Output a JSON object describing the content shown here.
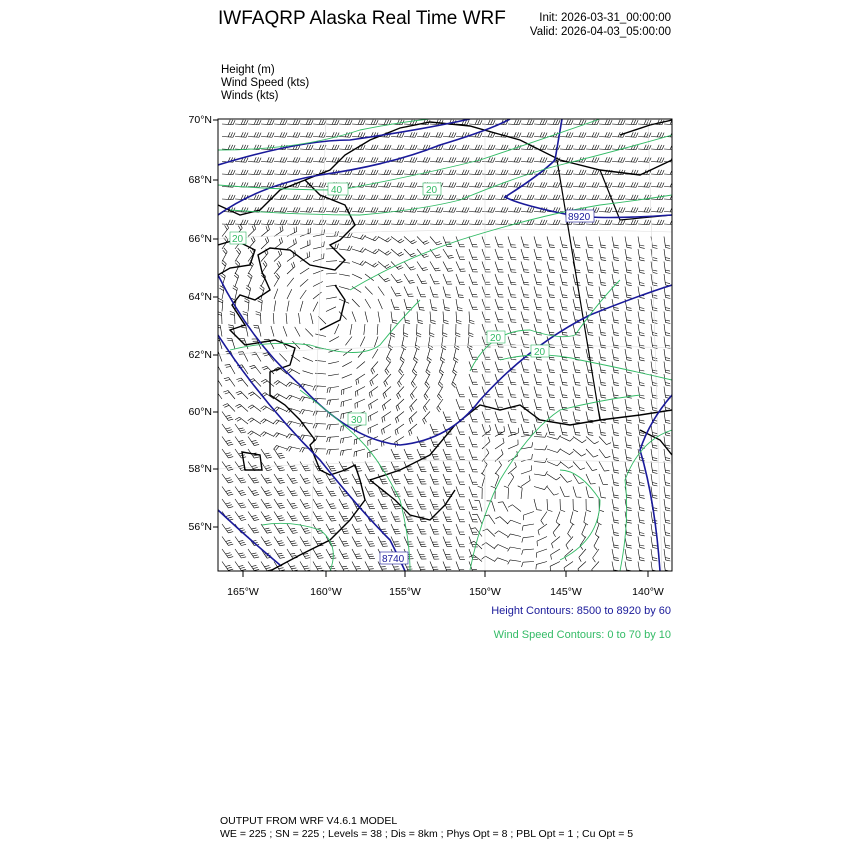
{
  "header": {
    "title": "IWFAQRP Alaska Real Time WRF",
    "init": "Init: 2026-03-31_00:00:00",
    "valid": "Valid: 2026-04-03_05:00:00"
  },
  "fields": [
    "Height   (m)",
    "Wind Speed   (kts)",
    "Winds   (kts)"
  ],
  "map": {
    "lat_labels": [
      "70°N",
      "68°N",
      "66°N",
      "64°N",
      "62°N",
      "60°N",
      "58°N",
      "56°N"
    ],
    "lon_labels": [
      "165°W",
      "160°W",
      "155°W",
      "150°W",
      "145°W",
      "140°W"
    ],
    "height_contour_labels": [
      "8920",
      "8740"
    ],
    "wind_contour_labels": [
      "40",
      "20",
      "20",
      "20",
      "30",
      "20"
    ],
    "colors": {
      "height": "#1a1a9a",
      "wind_speed": "#33bb66",
      "barbs": "#000000",
      "coast": "#000000"
    }
  },
  "legend": {
    "height": "Height Contours: 8500 to 8920 by 60",
    "wind": "Wind Speed Contours: 0 to 70 by 10"
  },
  "footer": {
    "line1": "OUTPUT FROM WRF V4.6.1 MODEL",
    "line2": "WE = 225 ; SN = 225 ; Levels = 38 ; Dis = 8km ; Phys Opt = 8 ; PBL Opt = 1 ; Cu Opt = 5"
  }
}
